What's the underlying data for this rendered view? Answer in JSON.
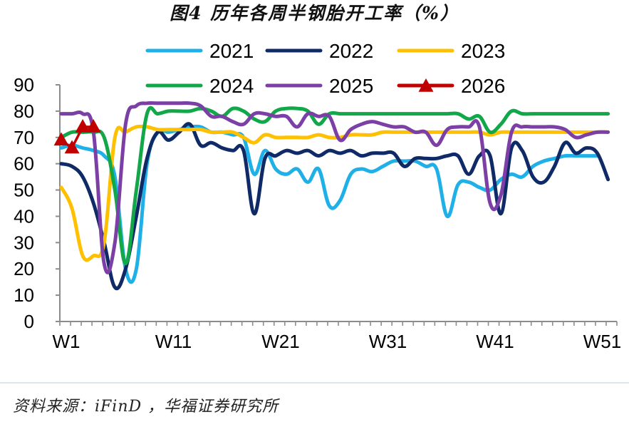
{
  "title": "图4 历年各周半钢胎开工率（%）",
  "source": "资料来源：iFinD ，华福证券研究所",
  "chart_data": {
    "type": "line",
    "title": "图4 历年各周半钢胎开工率（%）",
    "xlabel": "",
    "ylabel": "",
    "ylim": [
      0,
      90
    ],
    "yticks": [
      0,
      10,
      20,
      30,
      40,
      50,
      60,
      70,
      80,
      90
    ],
    "xtick_labels": [
      "W1",
      "W11",
      "W21",
      "W31",
      "W41",
      "W51"
    ],
    "xtick_positions": [
      1,
      11,
      21,
      31,
      41,
      51
    ],
    "x_range": [
      1,
      52
    ],
    "grid": false,
    "legend_position": "top",
    "series": [
      {
        "name": "2021",
        "color": "#1fb0e8",
        "marker": "none",
        "x": [
          1,
          2,
          3,
          4,
          5,
          6,
          7,
          8,
          9,
          10,
          11,
          12,
          13,
          14,
          15,
          16,
          17,
          18,
          19,
          20,
          21,
          22,
          23,
          24,
          25,
          26,
          27,
          28,
          29,
          30,
          31,
          32,
          33,
          34,
          35,
          36,
          37,
          38,
          39,
          40,
          41,
          42,
          43,
          44,
          45,
          46,
          47,
          48,
          49,
          50,
          51
        ],
        "values": [
          66,
          67,
          66,
          65,
          63,
          55,
          20,
          20,
          60,
          72,
          72,
          73,
          74,
          74,
          72,
          72,
          71,
          70,
          56,
          65,
          58,
          56,
          58,
          53,
          58,
          44,
          46,
          56,
          58,
          57,
          59,
          61,
          61,
          61,
          59,
          58,
          40,
          52,
          53,
          51,
          50,
          54,
          56,
          55,
          59,
          61,
          62,
          63,
          63,
          63,
          63
        ]
      },
      {
        "name": "2022",
        "color": "#0f2a66",
        "marker": "none",
        "x": [
          1,
          2,
          3,
          4,
          5,
          6,
          7,
          8,
          9,
          10,
          11,
          12,
          13,
          14,
          15,
          16,
          17,
          18,
          19,
          20,
          21,
          22,
          23,
          24,
          25,
          26,
          27,
          28,
          29,
          30,
          31,
          32,
          33,
          34,
          35,
          36,
          37,
          38,
          39,
          40,
          41,
          42,
          43,
          44,
          45,
          46,
          47,
          48,
          49,
          50,
          51,
          52
        ],
        "values": [
          60,
          59,
          55,
          45,
          30,
          13,
          20,
          40,
          62,
          72,
          69,
          72,
          75,
          67,
          68,
          66,
          65,
          65,
          41,
          62,
          63,
          65,
          64,
          65,
          63,
          65,
          64,
          65,
          63,
          64,
          64,
          64,
          59,
          62,
          62,
          62,
          63,
          63,
          56,
          63,
          63,
          41,
          66,
          65,
          55,
          53,
          59,
          68,
          64,
          66,
          64,
          54
        ]
      },
      {
        "name": "2023",
        "color": "#ffc000",
        "marker": "none",
        "x": [
          1,
          2,
          3,
          4,
          5,
          6,
          7,
          8,
          9,
          10,
          11,
          12,
          13,
          14,
          15,
          16,
          17,
          18,
          19,
          20,
          21,
          22,
          23,
          24,
          25,
          26,
          27,
          28,
          29,
          30,
          31,
          32,
          33,
          34,
          35,
          36,
          37,
          38,
          39,
          40,
          41,
          42,
          43,
          44,
          45,
          46,
          47,
          48,
          49,
          50,
          51,
          52
        ],
        "values": [
          51,
          43,
          25,
          25,
          30,
          70,
          72,
          74,
          74,
          73,
          73,
          73,
          73,
          73,
          72,
          72,
          72,
          70,
          68,
          71,
          70,
          70,
          70,
          70,
          71,
          70,
          70,
          71,
          71,
          71,
          72,
          72,
          72,
          72,
          72,
          72,
          72,
          72,
          72,
          72,
          71,
          72,
          72,
          72,
          72,
          72,
          72,
          72,
          72,
          72,
          72,
          72
        ]
      },
      {
        "name": "2024",
        "color": "#12a84a",
        "marker": "none",
        "x": [
          1,
          2,
          3,
          4,
          5,
          6,
          7,
          8,
          9,
          10,
          11,
          12,
          13,
          14,
          15,
          16,
          17,
          18,
          19,
          20,
          21,
          22,
          23,
          24,
          25,
          26,
          27,
          28,
          29,
          30,
          31,
          32,
          33,
          34,
          35,
          36,
          37,
          38,
          39,
          40,
          41,
          42,
          43,
          44,
          45,
          46,
          47,
          48,
          49,
          50,
          51,
          52
        ],
        "values": [
          70,
          72,
          72,
          72,
          70,
          50,
          22,
          50,
          79,
          79,
          80,
          80,
          80,
          81,
          80,
          78,
          81,
          80,
          77,
          76,
          80,
          81,
          81,
          80,
          75,
          79,
          79,
          79,
          79,
          79,
          79,
          79,
          79,
          79,
          79,
          79,
          79,
          79,
          77,
          78,
          72,
          75,
          80,
          79,
          79,
          79,
          79,
          79,
          79,
          79,
          79,
          79
        ]
      },
      {
        "name": "2025",
        "color": "#7c3fa6",
        "marker": "none",
        "x": [
          1,
          2,
          3,
          4,
          5,
          6,
          7,
          8,
          9,
          10,
          11,
          12,
          13,
          14,
          15,
          16,
          17,
          18,
          19,
          20,
          21,
          22,
          23,
          24,
          25,
          26,
          27,
          28,
          29,
          30,
          31,
          32,
          33,
          34,
          35,
          36,
          37,
          38,
          39,
          40,
          41,
          42,
          43,
          44,
          45,
          46,
          47,
          48,
          49,
          50,
          51,
          52
        ],
        "values": [
          79,
          79,
          79,
          72,
          22,
          30,
          75,
          82,
          83,
          83,
          83,
          83,
          83,
          82,
          78,
          78,
          76,
          75,
          79,
          79,
          78,
          78,
          74,
          79,
          78,
          78,
          69,
          73,
          75,
          76,
          75,
          74,
          74,
          72,
          72,
          67,
          73,
          74,
          74,
          74,
          45,
          48,
          72,
          74,
          74,
          74,
          74,
          73,
          70,
          71,
          72,
          72
        ]
      },
      {
        "name": "2026",
        "color": "#c00000",
        "marker": "triangle",
        "x": [
          1,
          2,
          3,
          4
        ],
        "values": [
          69,
          66,
          74,
          74
        ]
      }
    ]
  },
  "legend": [
    {
      "label": "2021",
      "color": "#1fb0e8",
      "marker": "none"
    },
    {
      "label": "2022",
      "color": "#0f2a66",
      "marker": "none"
    },
    {
      "label": "2023",
      "color": "#ffc000",
      "marker": "none"
    },
    {
      "label": "2024",
      "color": "#12a84a",
      "marker": "none"
    },
    {
      "label": "2025",
      "color": "#7c3fa6",
      "marker": "none"
    },
    {
      "label": "2026",
      "color": "#c00000",
      "marker": "triangle"
    }
  ]
}
